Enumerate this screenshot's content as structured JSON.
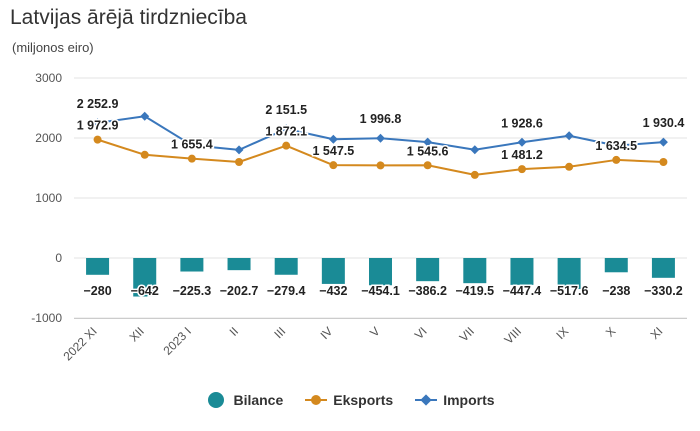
{
  "title": "Latvijas ārējā tirdzniecība",
  "subtitle": "(miljonos eiro)",
  "colors": {
    "bilance": "#1a8b96",
    "eksports": "#d4891e",
    "imports": "#3a77bc",
    "grid": "#e3e3e3",
    "label": "#222222",
    "axis_text": "#555555"
  },
  "chart_data": {
    "type": "bar",
    "title": "Latvijas ārējā tirdzniecība",
    "subtitle": "(miljonos eiro)",
    "xlabel": "",
    "ylabel": "",
    "ylim": [
      -1000,
      3000
    ],
    "yticks": [
      -1000,
      0,
      1000,
      2000,
      3000
    ],
    "categories": [
      "2022 XI",
      "XII",
      "2023 I",
      "II",
      "III",
      "IV",
      "V",
      "VI",
      "VII",
      "VIII",
      "IX",
      "X",
      "XI"
    ],
    "grid": true,
    "legend_position": "bottom-center",
    "series": [
      {
        "name": "Bilance",
        "type": "bar",
        "values": [
          -280,
          -642,
          -225.3,
          -202.7,
          -279.4,
          -432,
          -454.1,
          -386.2,
          -419.5,
          -447.4,
          -517.6,
          -238,
          -330.2
        ],
        "labels": [
          "−280",
          "−642",
          "−225.3",
          "−202.7",
          "−279.4",
          "−432",
          "−454.1",
          "−386.2",
          "−419.5",
          "−447.4",
          "−517.6",
          "−238",
          "−330.2"
        ]
      },
      {
        "name": "Eksports",
        "type": "line",
        "values": [
          1972.9,
          1720,
          1655.4,
          1600,
          1872.1,
          1547.5,
          1543,
          1545.6,
          1385,
          1481.2,
          1520,
          1634.5,
          1600
        ],
        "labels": [
          "1 972.9",
          null,
          "1 655.4",
          null,
          "1 872.1",
          "1 547.5",
          null,
          "1 545.6",
          null,
          "1 481.2",
          null,
          "1 634.5",
          null
        ]
      },
      {
        "name": "Imports",
        "type": "line",
        "values": [
          2252.9,
          2362,
          1880,
          1802,
          2151.5,
          1979.5,
          1996.8,
          1931.8,
          1804.5,
          1928.6,
          2037.6,
          1872.5,
          1930.4
        ],
        "labels": [
          "2 252.9",
          null,
          null,
          null,
          "2 151.5",
          null,
          "1 996.8",
          null,
          null,
          "1 928.6",
          null,
          null,
          "1 930.4"
        ]
      }
    ]
  },
  "legend": [
    {
      "label": "Bilance",
      "symbol": "circle"
    },
    {
      "label": "Eksports",
      "symbol": "line-circle"
    },
    {
      "label": "Imports",
      "symbol": "line-diamond"
    }
  ]
}
